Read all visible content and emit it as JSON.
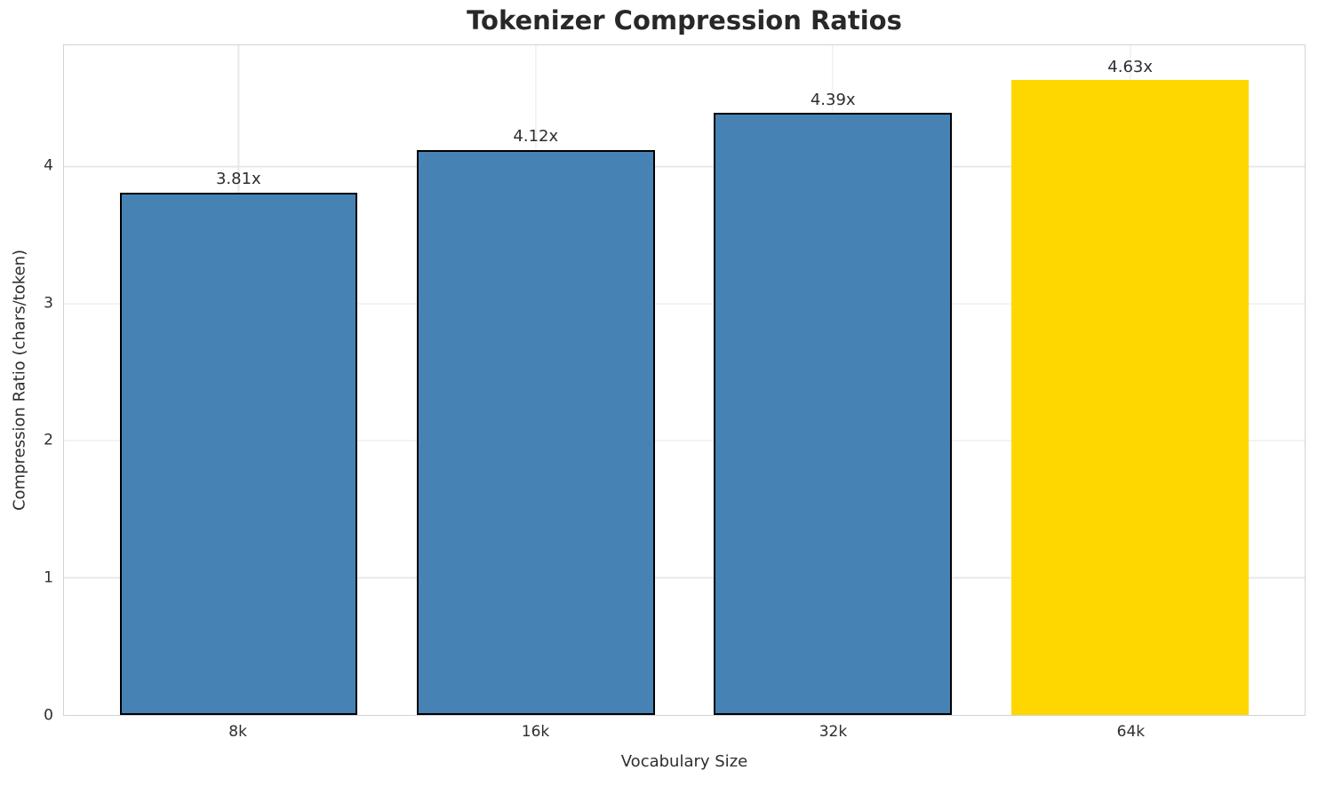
{
  "chart_data": {
    "type": "bar",
    "title": "Tokenizer Compression Ratios",
    "xlabel": "Vocabulary Size",
    "ylabel": "Compression Ratio (chars/token)",
    "categories": [
      "8k",
      "16k",
      "32k",
      "64k"
    ],
    "values": [
      3.81,
      4.12,
      4.39,
      4.63
    ],
    "bar_labels": [
      "3.81x",
      "4.12x",
      "4.39x",
      "4.63x"
    ],
    "bar_colors": [
      "#4682B4",
      "#4682B4",
      "#4682B4",
      "#FFD700"
    ],
    "bar_edge_colors": [
      "#000000",
      "#000000",
      "#000000",
      "#FFD700"
    ],
    "yticks": [
      0,
      1,
      2,
      3,
      4
    ],
    "ylim": [
      0,
      4.885
    ],
    "xlim": [
      -0.587,
      3.587
    ],
    "bar_width_units": 0.8,
    "grid": true,
    "legend_position": "none",
    "colors": {
      "accent_bar": "#4682B4",
      "highlight_bar": "#FFD700",
      "bar_edge": "#000000",
      "grid": "#e7e7e7",
      "spine": "#d2d2d2",
      "title_text": "#282828",
      "label_text": "#2e2e2e",
      "background": "#ffffff"
    }
  }
}
